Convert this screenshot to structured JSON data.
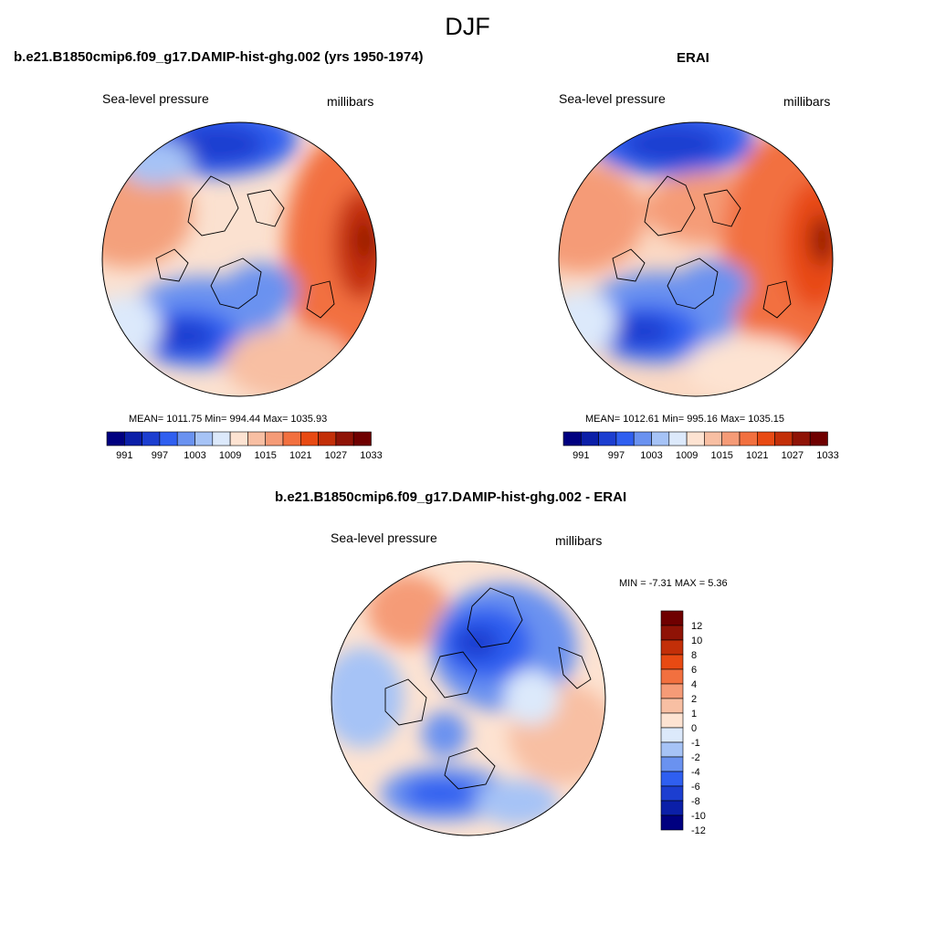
{
  "figure": {
    "title": "DJF",
    "units_label": "millibars",
    "variable_label": "Sea-level pressure"
  },
  "panels": {
    "model": {
      "title": "b.e21.B1850cmip6.f09_g17.DAMIP-hist-ghg.002 (yrs 1950-1974)",
      "stats": "MEAN= 1011.75  Min= 994.44  Max= 1035.93"
    },
    "obs": {
      "title": "ERAI",
      "stats": "MEAN= 1012.61  Min= 995.16  Max= 1035.15"
    },
    "diff": {
      "title": "b.e21.B1850cmip6.f09_g17.DAMIP-hist-ghg.002 - ERAI",
      "stats": "MIN =  -7.31 MAX =   5.36"
    }
  },
  "colorbars": {
    "abs": {
      "colors": [
        "#000080",
        "#0b1fa8",
        "#1c3ed0",
        "#2f5ff0",
        "#6a92f0",
        "#a6c3f6",
        "#dce9fb",
        "#fde3d2",
        "#f8bfa3",
        "#f59b77",
        "#f2703f",
        "#e84a13",
        "#c32f08",
        "#8f1306",
        "#6f0000"
      ],
      "labels": [
        "991",
        "997",
        "1003",
        "1009",
        "1015",
        "1021",
        "1027",
        "1033"
      ]
    },
    "diff": {
      "colors": [
        "#000080",
        "#0b1fa8",
        "#1c3ed0",
        "#2f5ff0",
        "#6a92f0",
        "#a6c3f6",
        "#dce9fb",
        "#fde3d2",
        "#f8bfa3",
        "#f59b77",
        "#f2703f",
        "#e84a13",
        "#c32f08",
        "#8f1306",
        "#6f0000"
      ],
      "labels": [
        "12",
        "10",
        "8",
        "6",
        "4",
        "2",
        "1",
        "0",
        "-1",
        "-2",
        "-4",
        "-6",
        "-8",
        "-10",
        "-12"
      ]
    }
  }
}
